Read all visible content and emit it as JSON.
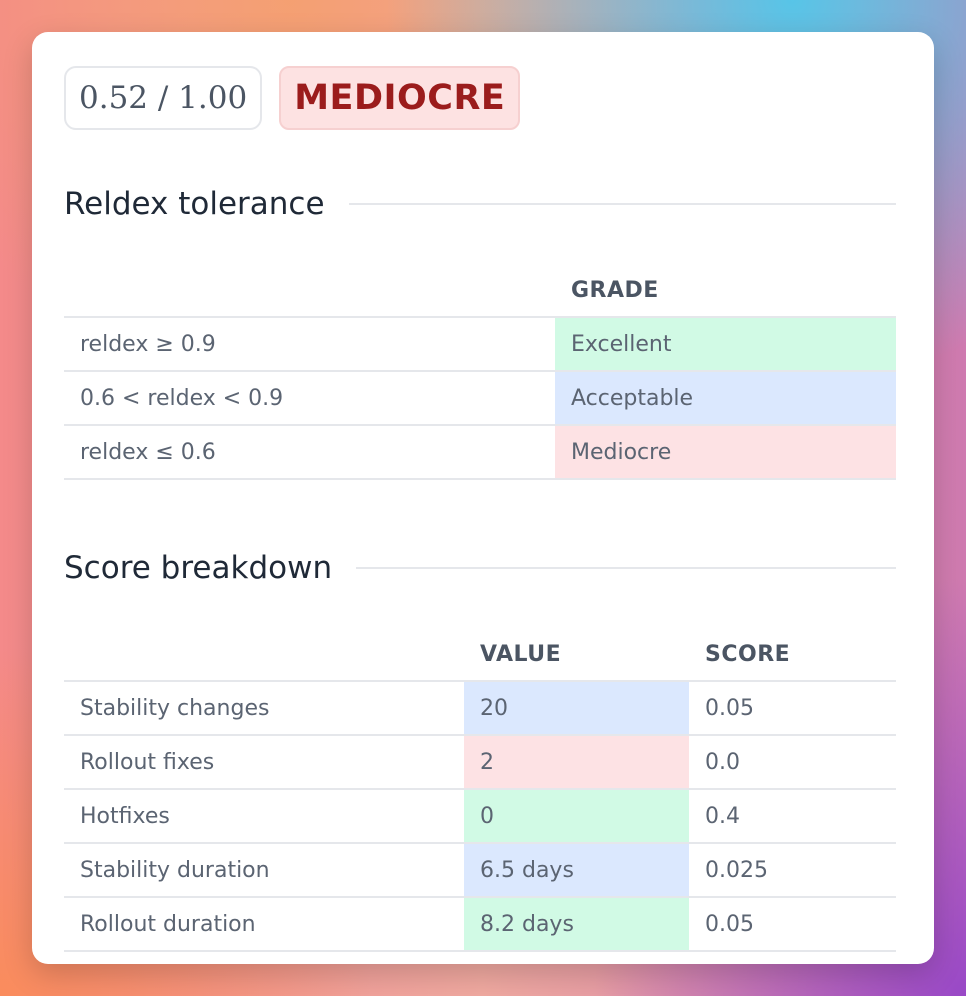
{
  "score": {
    "text": "0.52 / 1.00",
    "grade": "MEDIOCRE"
  },
  "tolerance": {
    "title": "Reldex tolerance",
    "headers": [
      "",
      "GRADE"
    ],
    "rows": [
      {
        "condition": "reldex ≥ 0.9",
        "grade": "Excellent",
        "color": "green"
      },
      {
        "condition": "0.6 < reldex < 0.9",
        "grade": "Acceptable",
        "color": "blue"
      },
      {
        "condition": "reldex ≤ 0.6",
        "grade": "Mediocre",
        "color": "red"
      }
    ]
  },
  "breakdown": {
    "title": "Score breakdown",
    "headers": [
      "",
      "VALUE",
      "SCORE"
    ],
    "rows": [
      {
        "metric": "Stability changes",
        "value": "20",
        "score": "0.05",
        "color": "blue"
      },
      {
        "metric": "Rollout fixes",
        "value": "2",
        "score": "0.0",
        "color": "red"
      },
      {
        "metric": "Hotfixes",
        "value": "0",
        "score": "0.4",
        "color": "green"
      },
      {
        "metric": "Stability duration",
        "value": "6.5 days",
        "score": "0.025",
        "color": "blue"
      },
      {
        "metric": "Rollout duration",
        "value": "8.2 days",
        "score": "0.05",
        "color": "green"
      }
    ]
  },
  "colors": {
    "green": "#d1fae5",
    "blue": "#dbe8fe",
    "red": "#fde2e4",
    "grade_text": "#9b1c1c"
  }
}
